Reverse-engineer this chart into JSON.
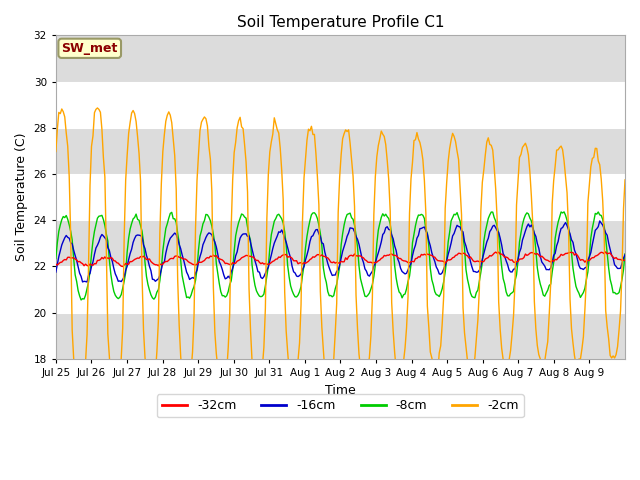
{
  "title": "Soil Temperature Profile C1",
  "xlabel": "Time",
  "ylabel": "Soil Temperature (C)",
  "ylim": [
    18,
    32
  ],
  "yticks": [
    18,
    20,
    22,
    24,
    26,
    28,
    30,
    32
  ],
  "annotation_text": "SW_met",
  "annotation_color": "#8B0000",
  "annotation_bg": "#FFFFCC",
  "annotation_border": "#999966",
  "fig_bg": "#FFFFFF",
  "plot_bg": "#FFFFFF",
  "band_color": "#DCDCDC",
  "line_colors": {
    "-32cm": "#FF0000",
    "-16cm": "#0000CC",
    "-8cm": "#00CC00",
    "-2cm": "#FFA500"
  },
  "x_tick_labels": [
    "Jul 25",
    "Jul 26",
    "Jul 27",
    "Jul 28",
    "Jul 29",
    "Jul 30",
    "Jul 31",
    "Aug 1",
    "Aug 2",
    "Aug 3",
    "Aug 4",
    "Aug 5",
    "Aug 6",
    "Aug 7",
    "Aug 8",
    "Aug 9"
  ],
  "n_days": 16,
  "pts_per_day": 24
}
